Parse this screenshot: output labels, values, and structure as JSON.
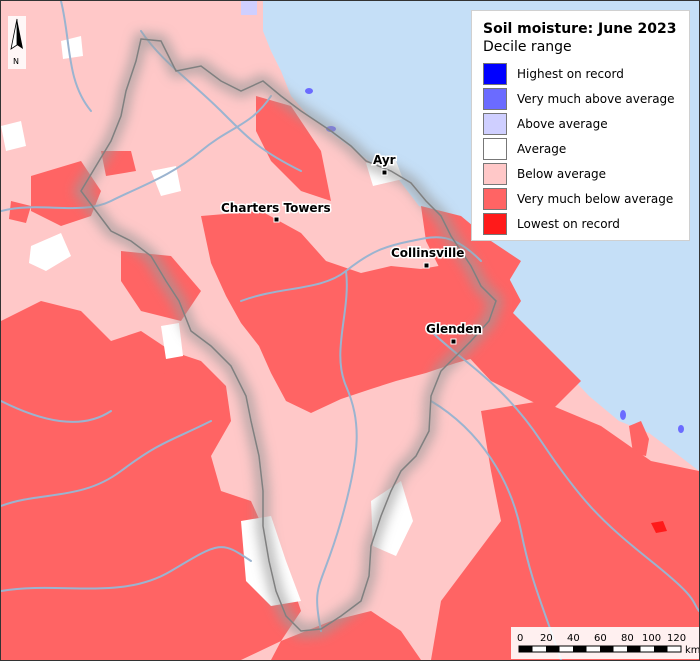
{
  "legend": {
    "title": "Soil moisture: June 2023",
    "subtitle": "Decile range",
    "items": [
      {
        "label": "Highest on record",
        "color": "#0000ff"
      },
      {
        "label": "Very much above average",
        "color": "#6b6bff"
      },
      {
        "label": "Above average",
        "color": "#cfcfff"
      },
      {
        "label": "Average",
        "color": "#ffffff"
      },
      {
        "label": "Below average",
        "color": "#ffc8c8"
      },
      {
        "label": "Very much below average",
        "color": "#ff6464"
      },
      {
        "label": "Lowest on record",
        "color": "#ff1a1a"
      }
    ]
  },
  "towns": [
    {
      "name": "Ayr"
    },
    {
      "name": "Charters Towers"
    },
    {
      "name": "Collinsville"
    },
    {
      "name": "Glenden"
    }
  ],
  "north_arrow": {
    "label": "N"
  },
  "scale_bar": {
    "ticks": [
      "0",
      "20",
      "40",
      "60",
      "80",
      "100",
      "120"
    ],
    "unit": "km"
  },
  "colors": {
    "sea": "#c5dff7",
    "river": "#9bb4d0",
    "catchment_outline": "#808080"
  }
}
